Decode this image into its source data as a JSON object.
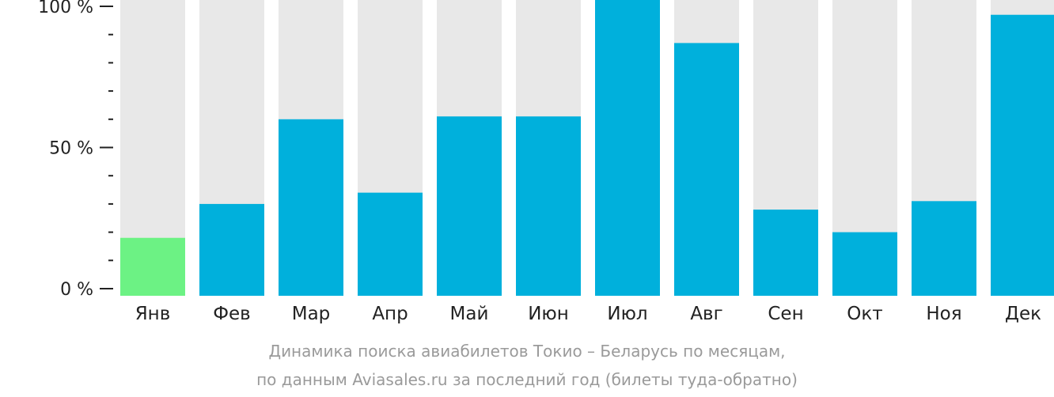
{
  "chart_data": {
    "type": "bar",
    "categories": [
      "Янв",
      "Фев",
      "Мар",
      "Апр",
      "Май",
      "Июн",
      "Июл",
      "Авг",
      "Сен",
      "Окт",
      "Ноя",
      "Дек"
    ],
    "values": [
      18,
      30,
      60,
      34,
      61,
      61,
      100,
      87,
      28,
      20,
      31,
      97
    ],
    "ylim": [
      0,
      100
    ],
    "ytick_labels": [
      "0 %",
      "50 %",
      "100 %"
    ],
    "track_color": "#e8e8e8",
    "bar_color": "#00b0dc",
    "highlight_color": "#6cf284",
    "highlight_index": 0,
    "grid": false,
    "legend": "none"
  },
  "caption": {
    "line1": "Динамика поиска авиабилетов Токио – Беларусь по месяцам,",
    "line2": "по данным Aviasales.ru за последний год (билеты туда-обратно)"
  }
}
